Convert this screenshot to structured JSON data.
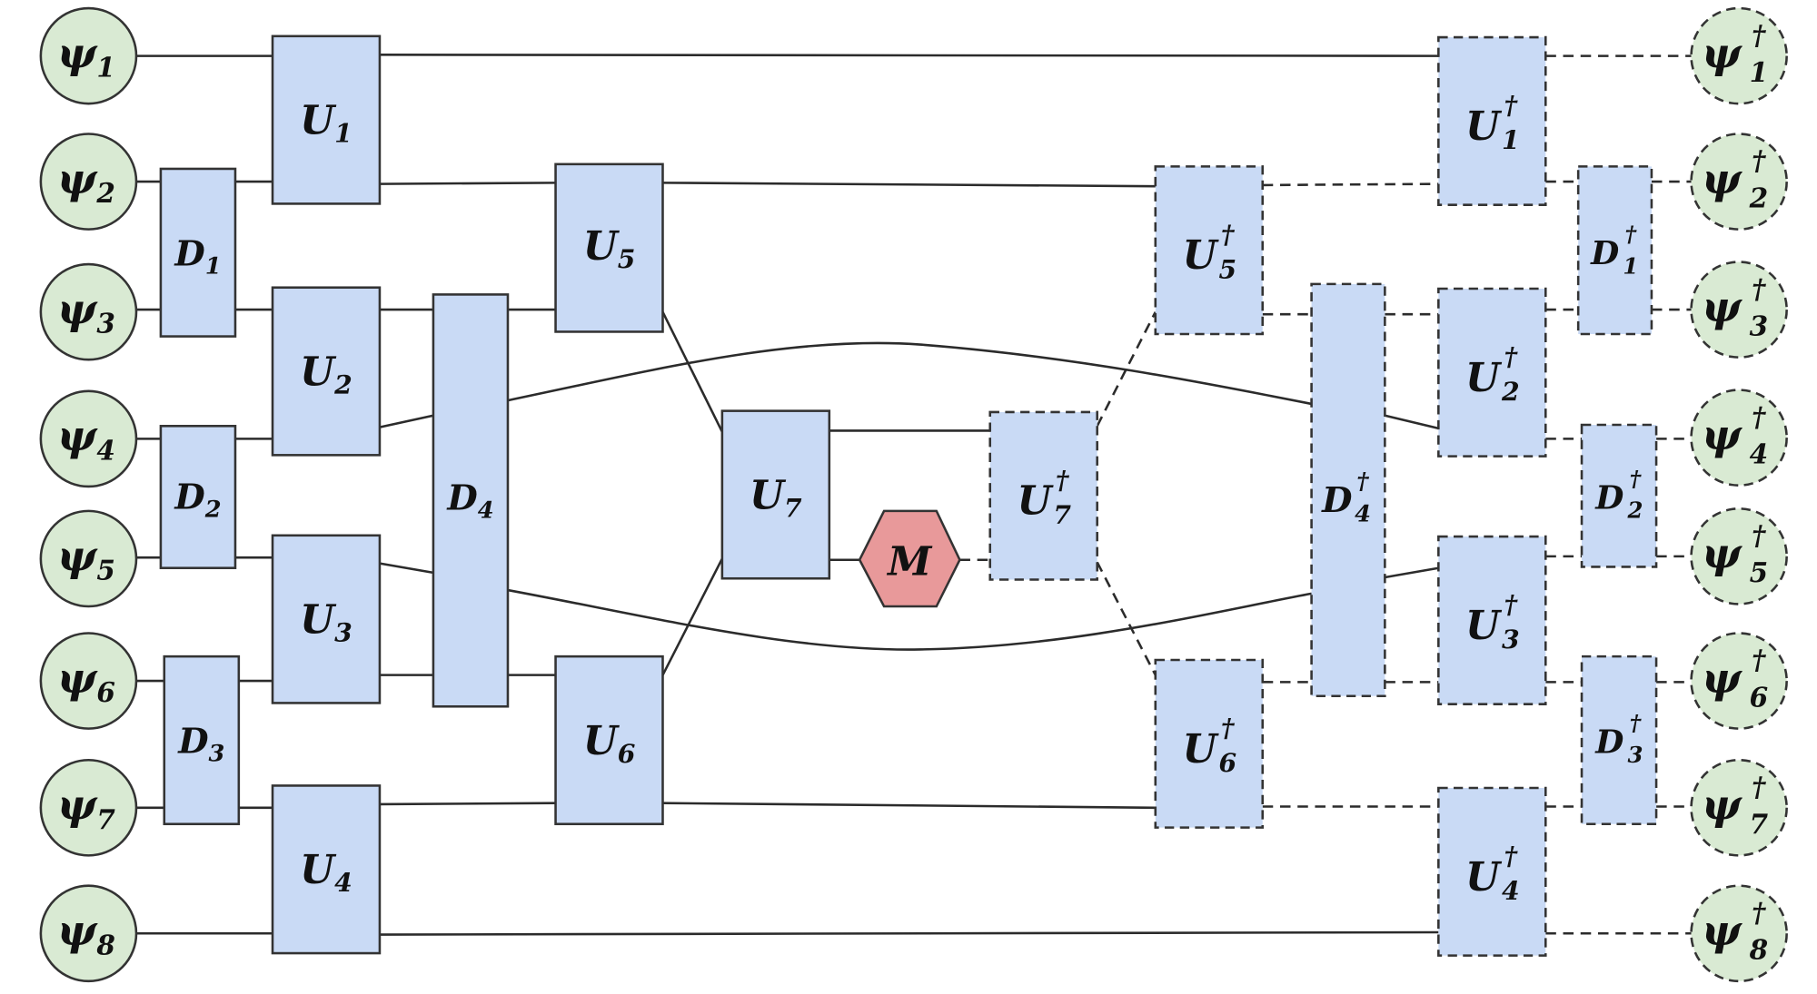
{
  "inputs": [
    {
      "sym": "ψ",
      "sub": "1"
    },
    {
      "sym": "ψ",
      "sub": "2"
    },
    {
      "sym": "ψ",
      "sub": "3"
    },
    {
      "sym": "ψ",
      "sub": "4"
    },
    {
      "sym": "ψ",
      "sub": "5"
    },
    {
      "sym": "ψ",
      "sub": "6"
    },
    {
      "sym": "ψ",
      "sub": "7"
    },
    {
      "sym": "ψ",
      "sub": "8"
    }
  ],
  "outputs": [
    {
      "sym": "ψ",
      "sub": "1",
      "sup": "†"
    },
    {
      "sym": "ψ",
      "sub": "2",
      "sup": "†"
    },
    {
      "sym": "ψ",
      "sub": "3",
      "sup": "†"
    },
    {
      "sym": "ψ",
      "sub": "4",
      "sup": "†"
    },
    {
      "sym": "ψ",
      "sub": "5",
      "sup": "†"
    },
    {
      "sym": "ψ",
      "sub": "6",
      "sup": "†"
    },
    {
      "sym": "ψ",
      "sub": "7",
      "sup": "†"
    },
    {
      "sym": "ψ",
      "sub": "8",
      "sup": "†"
    }
  ],
  "gates": {
    "U1": {
      "sym": "U",
      "sub": "1"
    },
    "U2": {
      "sym": "U",
      "sub": "2"
    },
    "U3": {
      "sym": "U",
      "sub": "3"
    },
    "U4": {
      "sym": "U",
      "sub": "4"
    },
    "U5": {
      "sym": "U",
      "sub": "5"
    },
    "U6": {
      "sym": "U",
      "sub": "6"
    },
    "U7": {
      "sym": "U",
      "sub": "7"
    },
    "D1": {
      "sym": "D",
      "sub": "1"
    },
    "D2": {
      "sym": "D",
      "sub": "2"
    },
    "D3": {
      "sym": "D",
      "sub": "3"
    },
    "D4": {
      "sym": "D",
      "sub": "4"
    },
    "M": {
      "sym": "M"
    },
    "U7d": {
      "sym": "U",
      "sub": "7",
      "sup": "†"
    },
    "U5d": {
      "sym": "U",
      "sub": "5",
      "sup": "†"
    },
    "U6d": {
      "sym": "U",
      "sub": "6",
      "sup": "†"
    },
    "D4d": {
      "sym": "D",
      "sub": "4",
      "sup": "†"
    },
    "U1d": {
      "sym": "U",
      "sub": "1",
      "sup": "†"
    },
    "U2d": {
      "sym": "U",
      "sub": "2",
      "sup": "†"
    },
    "U3d": {
      "sym": "U",
      "sub": "3",
      "sup": "†"
    },
    "U4d": {
      "sym": "U",
      "sub": "4",
      "sup": "†"
    },
    "D1d": {
      "sym": "D",
      "sub": "1",
      "sup": "†"
    },
    "D2d": {
      "sym": "D",
      "sub": "2",
      "sup": "†"
    },
    "D3d": {
      "sym": "D",
      "sub": "3",
      "sup": "†"
    }
  },
  "colors": {
    "gate_fill": "#c9daf5",
    "state_fill": "#d9ead3",
    "measure_fill": "#e8999a",
    "line": "#2b2b2b"
  }
}
